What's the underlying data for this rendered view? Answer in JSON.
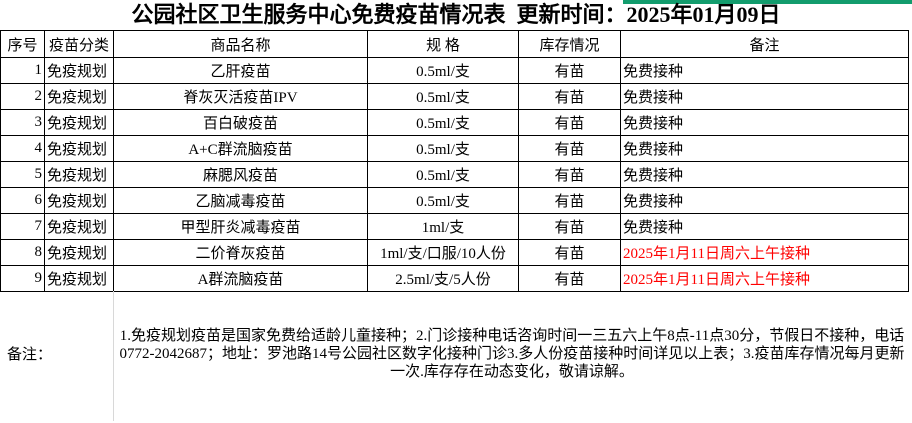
{
  "page": {
    "title": "公园社区卫生服务中心免费疫苗情况表  更新时间：2025年01月09日"
  },
  "colors": {
    "accent_green": "#129C6D",
    "alert_red": "#FF0000",
    "border_black": "#000000",
    "gridline_grey": "#D8D8D8"
  },
  "table": {
    "headers": [
      "序号",
      "疫苗分类",
      "商品名称",
      "规 格",
      "库存情况",
      "备注"
    ],
    "rows": [
      {
        "no": "1",
        "category": "免疫规划",
        "name": "乙肝疫苗",
        "spec": "0.5ml/支",
        "stock": "有苗",
        "note": "免费接种",
        "note_red": false
      },
      {
        "no": "2",
        "category": "免疫规划",
        "name": "脊灰灭活疫苗IPV",
        "spec": "0.5ml/支",
        "stock": "有苗",
        "note": "免费接种",
        "note_red": false
      },
      {
        "no": "3",
        "category": "免疫规划",
        "name": "百白破疫苗",
        "spec": "0.5ml/支",
        "stock": "有苗",
        "note": "免费接种",
        "note_red": false
      },
      {
        "no": "4",
        "category": "免疫规划",
        "name": "A+C群流脑疫苗",
        "spec": "0.5ml/支",
        "stock": "有苗",
        "note": "免费接种",
        "note_red": false
      },
      {
        "no": "5",
        "category": "免疫规划",
        "name": "麻腮风疫苗",
        "spec": "0.5ml/支",
        "stock": "有苗",
        "note": "免费接种",
        "note_red": false
      },
      {
        "no": "6",
        "category": "免疫规划",
        "name": "乙脑减毒疫苗",
        "spec": "0.5ml/支",
        "stock": "有苗",
        "note": "免费接种",
        "note_red": false
      },
      {
        "no": "7",
        "category": "免疫规划",
        "name": "甲型肝炎减毒疫苗",
        "spec": "1ml/支",
        "stock": "有苗",
        "note": "免费接种",
        "note_red": false
      },
      {
        "no": "8",
        "category": "免疫规划",
        "name": "二价脊灰疫苗",
        "spec": "1ml/支/口服/10人份",
        "stock": "有苗",
        "note": "2025年1月11日周六上午接种",
        "note_red": true
      },
      {
        "no": "9",
        "category": "免疫规划",
        "name": "A群流脑疫苗",
        "spec": "2.5ml/支/5人份",
        "stock": "有苗",
        "note": "2025年1月11日周六上午接种",
        "note_red": true
      }
    ]
  },
  "footer": {
    "label": "备注：",
    "text": "1.免疫规划疫苗是国家免费给适龄儿童接种；2.门诊接种电话咨询时间一三五六上午8点-11点30分，节假日不接种，电话0772-2042687；地址：罗池路14号公园社区数字化接种门诊3.多人份疫苗接种时间详见以上表；3.疫苗库存情况每月更新一次.库存存在动态变化，敬请谅解。"
  }
}
